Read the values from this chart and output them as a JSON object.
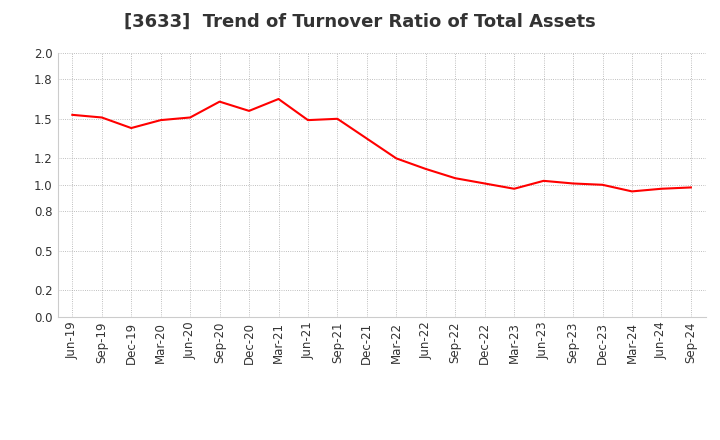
{
  "title": "[3633]  Trend of Turnover Ratio of Total Assets",
  "x_labels": [
    "Jun-19",
    "Sep-19",
    "Dec-19",
    "Mar-20",
    "Jun-20",
    "Sep-20",
    "Dec-20",
    "Mar-21",
    "Jun-21",
    "Sep-21",
    "Dec-21",
    "Mar-22",
    "Jun-22",
    "Sep-22",
    "Dec-22",
    "Mar-23",
    "Jun-23",
    "Sep-23",
    "Dec-23",
    "Mar-24",
    "Jun-24",
    "Sep-24"
  ],
  "values": [
    1.53,
    1.51,
    1.43,
    1.49,
    1.51,
    1.63,
    1.56,
    1.65,
    1.49,
    1.5,
    1.35,
    1.2,
    1.12,
    1.05,
    1.01,
    0.97,
    1.03,
    1.01,
    1.0,
    0.95,
    0.97,
    0.98
  ],
  "line_color": "#ff0000",
  "line_width": 1.5,
  "ylim": [
    0.0,
    2.0
  ],
  "yticks": [
    0.0,
    0.2,
    0.5,
    0.8,
    1.0,
    1.2,
    1.5,
    1.8,
    2.0
  ],
  "background_color": "#ffffff",
  "grid_color": "#aaaaaa",
  "title_fontsize": 13,
  "tick_fontsize": 8.5,
  "title_color": "#333333"
}
